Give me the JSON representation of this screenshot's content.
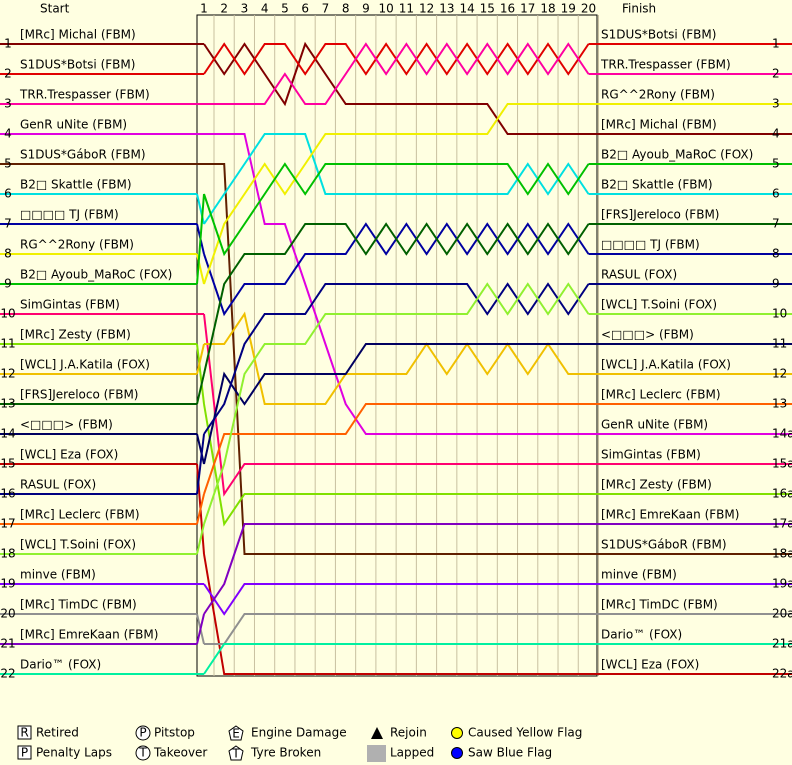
{
  "chart_data": {
    "type": "line",
    "start_label": "Start",
    "finish_label": "Finish",
    "x": [
      1,
      2,
      3,
      4,
      5,
      6,
      7,
      8,
      9,
      10,
      11,
      12,
      13,
      14,
      15,
      16,
      17,
      18,
      19,
      20
    ],
    "ylim": [
      1,
      22
    ],
    "series": [
      {
        "name": "[MRc] Michal (FBM)",
        "color": "#800000",
        "start": 1,
        "values": [
          1,
          2,
          1,
          2,
          3,
          1,
          2,
          3,
          3,
          3,
          3,
          3,
          3,
          3,
          3,
          4,
          4,
          4,
          4,
          4
        ]
      },
      {
        "name": "S1DUS*Botsi (FBM)",
        "color": "#e00000",
        "start": 2,
        "values": [
          2,
          1,
          2,
          1,
          1,
          2,
          1,
          1,
          2,
          1,
          2,
          1,
          2,
          1,
          2,
          1,
          2,
          1,
          2,
          1
        ]
      },
      {
        "name": "TRR.Trespasser (FBM)",
        "color": "#ff00a0",
        "start": 3,
        "values": [
          3,
          3,
          3,
          3,
          2,
          3,
          3,
          2,
          1,
          2,
          1,
          2,
          1,
          2,
          1,
          2,
          1,
          2,
          1,
          2
        ]
      },
      {
        "name": "GenR uNite (FBM)",
        "color": "#e000e0",
        "start": 4,
        "values": [
          4,
          4,
          4,
          7,
          7,
          9,
          11,
          13,
          14,
          14,
          14,
          14,
          14,
          14,
          14,
          14,
          14,
          14,
          14,
          14
        ]
      },
      {
        "name": "S1DUS*GáboR (FBM)",
        "color": "#602000",
        "start": 5,
        "values": [
          5,
          5,
          18,
          18,
          18,
          18,
          18,
          18,
          18,
          18,
          18,
          18,
          18,
          18,
          18,
          18,
          18,
          18,
          18,
          18
        ]
      },
      {
        "name": "B2□ Skattle (FBM)",
        "color": "#00e0e0",
        "start": 6,
        "values": [
          7,
          6,
          5,
          4,
          4,
          4,
          6,
          6,
          6,
          6,
          6,
          6,
          6,
          6,
          6,
          6,
          5,
          6,
          5,
          6
        ]
      },
      {
        "name": "□□□□ TJ (FBM)",
        "color": "#0000a0",
        "start": 7,
        "values": [
          8,
          10,
          9,
          9,
          9,
          8,
          8,
          8,
          7,
          8,
          7,
          8,
          7,
          8,
          7,
          8,
          7,
          8,
          7,
          8
        ]
      },
      {
        "name": "RG^^2Rony (FBM)",
        "color": "#f0f000",
        "start": 8,
        "values": [
          9,
          7,
          6,
          5,
          6,
          5,
          4,
          4,
          4,
          4,
          4,
          4,
          4,
          4,
          4,
          3,
          3,
          3,
          3,
          3
        ]
      },
      {
        "name": "B2□ Ayoub_MaRoC (FOX)",
        "color": "#00c000",
        "start": 9,
        "values": [
          6,
          8,
          7,
          6,
          5,
          6,
          5,
          5,
          5,
          5,
          5,
          5,
          5,
          5,
          5,
          5,
          6,
          5,
          6,
          5
        ]
      },
      {
        "name": "SimGintas (FBM)",
        "color": "#ff0070",
        "start": 10,
        "values": [
          10,
          16,
          15,
          15,
          15,
          15,
          15,
          15,
          15,
          15,
          15,
          15,
          15,
          15,
          15,
          15,
          15,
          15,
          15,
          15
        ]
      },
      {
        "name": "[MRc] Zesty (FBM)",
        "color": "#80e000",
        "start": 11,
        "values": [
          13,
          17,
          16,
          16,
          16,
          16,
          16,
          16,
          16,
          16,
          16,
          16,
          16,
          16,
          16,
          16,
          16,
          16,
          16,
          16
        ]
      },
      {
        "name": "[WCL] J.A.Katila (FOX)",
        "color": "#f0c000",
        "start": 12,
        "values": [
          11,
          11,
          10,
          13,
          13,
          13,
          13,
          12,
          12,
          12,
          12,
          11,
          12,
          11,
          12,
          11,
          12,
          11,
          12,
          12
        ]
      },
      {
        "name": "[FRS]Jereloco (FBM)",
        "color": "#006000",
        "start": 13,
        "values": [
          12,
          9,
          8,
          8,
          8,
          7,
          7,
          7,
          8,
          7,
          8,
          7,
          8,
          7,
          8,
          7,
          8,
          7,
          8,
          7
        ]
      },
      {
        "name": "<□□□> (FBM)",
        "color": "#000060",
        "start": 14,
        "values": [
          15,
          12,
          13,
          12,
          12,
          12,
          12,
          12,
          11,
          11,
          11,
          11,
          11,
          11,
          11,
          11,
          11,
          11,
          11,
          11
        ]
      },
      {
        "name": "[WCL] Eza (FOX)",
        "color": "#c00000",
        "start": 15,
        "values": [
          18,
          22,
          22,
          22,
          22,
          22,
          22,
          22,
          22,
          22,
          22,
          22,
          22,
          22,
          22,
          22,
          22,
          22,
          22,
          22
        ]
      },
      {
        "name": "RASUL (FOX)",
        "color": "#000080",
        "start": 16,
        "values": [
          14,
          13,
          11,
          10,
          10,
          10,
          9,
          9,
          9,
          9,
          9,
          9,
          9,
          9,
          10,
          9,
          10,
          9,
          10,
          9
        ]
      },
      {
        "name": "[MRc] Leclerc (FBM)",
        "color": "#ff6000",
        "start": 17,
        "values": [
          16,
          14,
          14,
          14,
          14,
          14,
          14,
          14,
          13,
          13,
          13,
          13,
          13,
          13,
          13,
          13,
          13,
          13,
          13,
          13
        ]
      },
      {
        "name": "[WCL] T.Soini (FOX)",
        "color": "#90f030",
        "start": 18,
        "values": [
          17,
          15,
          12,
          11,
          11,
          11,
          10,
          10,
          10,
          10,
          10,
          10,
          10,
          10,
          9,
          10,
          9,
          10,
          9,
          10
        ]
      },
      {
        "name": "minve (FBM)",
        "color": "#8000ff",
        "start": 19,
        "values": [
          19,
          20,
          19,
          19,
          19,
          19,
          19,
          19,
          19,
          19,
          19,
          19,
          19,
          19,
          19,
          19,
          19,
          19,
          19,
          19
        ]
      },
      {
        "name": "[MRc] TimDC (FBM)",
        "color": "#909090",
        "start": 20,
        "values": [
          21,
          21,
          20,
          20,
          20,
          20,
          20,
          20,
          20,
          20,
          20,
          20,
          20,
          20,
          20,
          20,
          20,
          20,
          20,
          20
        ]
      },
      {
        "name": "[MRc] EmreKaan (FBM)",
        "color": "#8000c0",
        "start": 21,
        "values": [
          20,
          19,
          17,
          17,
          17,
          17,
          17,
          17,
          17,
          17,
          17,
          17,
          17,
          17,
          17,
          17,
          17,
          17,
          17,
          17
        ]
      },
      {
        "name": "Dario™ (FOX)",
        "color": "#00f0a0",
        "start": 22,
        "values": [
          22,
          21,
          21,
          21,
          21,
          21,
          21,
          21,
          21,
          21,
          21,
          21,
          21,
          21,
          21,
          21,
          21,
          21,
          21,
          21
        ]
      }
    ],
    "finish": {
      "drivers": [
        "S1DUS*Botsi (FBM)",
        "TRR.Trespasser (FBM)",
        "RG^^2Rony (FBM)",
        "[MRc] Michal (FBM)",
        "B2□ Ayoub_MaRoC (FOX)",
        "B2□ Skattle (FBM)",
        "[FRS]Jereloco (FBM)",
        "□□□□ TJ (FBM)",
        "RASUL (FOX)",
        "[WCL] T.Soini (FOX)",
        "<□□□> (FBM)",
        "[WCL] J.A.Katila (FOX)",
        "[MRc] Leclerc (FBM)",
        "GenR uNite (FBM)",
        "SimGintas (FBM)",
        "[MRc] Zesty (FBM)",
        "[MRc] EmreKaan (FBM)",
        "S1DUS*GáboR (FBM)",
        "minve (FBM)",
        "[MRc] TimDC (FBM)",
        "Dario™ (FOX)",
        "[WCL] Eza (FOX)"
      ],
      "positions": [
        1,
        2,
        3,
        4,
        5,
        6,
        7,
        8,
        9,
        10,
        11,
        12,
        13,
        "14a",
        "15a",
        "16a",
        "17a",
        "18a",
        "19a",
        "20a",
        "21a",
        "22a"
      ],
      "colors": [
        "#e00000",
        "#ff00a0",
        "#f0f000",
        "#800000",
        "#00c000",
        "#00e0e0",
        "#006000",
        "#0000a0",
        "#000080",
        "#90f030",
        "#000060",
        "#f0c000",
        "#ff6000",
        "#e000e0",
        "#ff0070",
        "#80e000",
        "#8000c0",
        "#602000",
        "#8000ff",
        "#909090",
        "#00f0a0",
        "#c00000"
      ]
    },
    "legend": [
      {
        "symbol": "R",
        "label": "Retired"
      },
      {
        "symbol": "P",
        "label": "Penalty Laps"
      },
      {
        "symbol": "P",
        "label": "Pitstop"
      },
      {
        "symbol": "T",
        "label": "Takeover"
      },
      {
        "symbol": "E",
        "label": "Engine Damage"
      },
      {
        "symbol": "T",
        "label": "Tyre Broken"
      },
      {
        "label": "Rejoin"
      },
      {
        "label": "Lapped"
      },
      {
        "label": "Caused Yellow Flag"
      },
      {
        "label": "Saw Blue Flag"
      }
    ]
  }
}
